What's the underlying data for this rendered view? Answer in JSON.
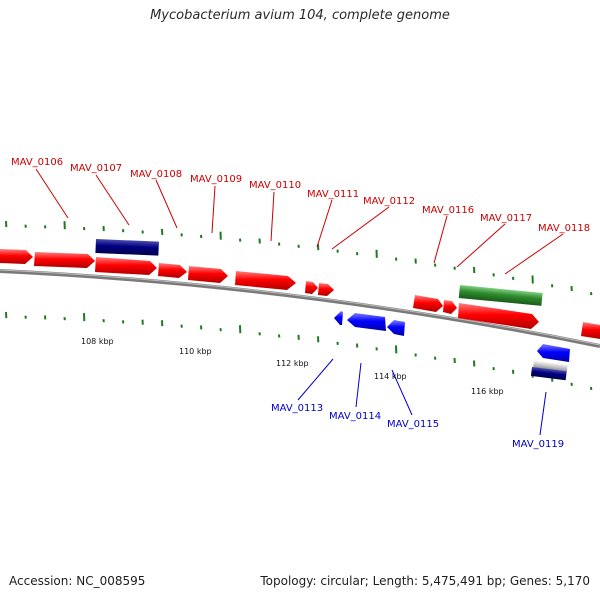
{
  "title": "Mycobacterium avium 104, complete genome",
  "footer": {
    "accession": "Accession: NC_008595",
    "summary": "Topology: circular; Length: 5,475,491 bp; Genes: 5,170"
  },
  "colors": {
    "forward_gene": "#ff0000",
    "reverse_gene": "#0000ff",
    "navy_gene": "#000080",
    "green_feature": "#2e8b2e",
    "gc_ticks": "#1f7a1f",
    "backbone": "#808080",
    "forward_label": "#cc0000",
    "reverse_label": "#0000cc"
  },
  "scale_labels": [
    "108 kbp",
    "110 kbp",
    "112 kbp",
    "114 kbp",
    "116 kbp"
  ],
  "gene_labels": {
    "forward": [
      "MAV_0106",
      "MAV_0107",
      "MAV_0108",
      "MAV_0109",
      "MAV_0110",
      "MAV_0111",
      "MAV_0112",
      "MAV_0116",
      "MAV_0117",
      "MAV_0118"
    ],
    "reverse": [
      "MAV_0113",
      "MAV_0114",
      "MAV_0115",
      "MAV_0119"
    ]
  }
}
